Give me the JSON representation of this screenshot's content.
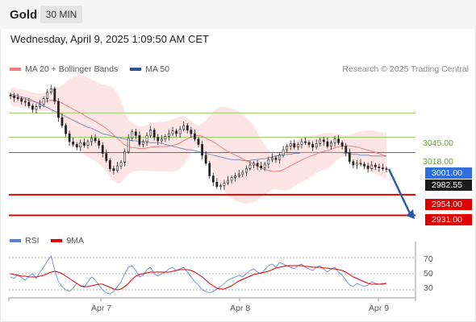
{
  "header": {
    "instrument": "Gold",
    "timeframe": "30 MIN"
  },
  "timestamp": "Wednesday, April 9, 2025 1:09:50 AM CET",
  "credit": "Research © 2025 Trading Central",
  "legend_main": [
    {
      "label": "MA 20 + Bollinger Bands",
      "color": "#f08080"
    },
    {
      "label": "MA 50",
      "color": "#2f4f8f"
    }
  ],
  "legend_rsi": [
    {
      "label": "RSI",
      "color": "#5b7fd6"
    },
    {
      "label": "9MA",
      "color": "#e00000"
    }
  ],
  "chart_data": {
    "type": "candlestick",
    "ylim": [
      2918,
      3083
    ],
    "x_ticks": [
      "Apr 7",
      "Apr 8",
      "Apr 9"
    ],
    "levels": [
      {
        "value": 3045.0,
        "label": "3045.00",
        "kind": "resistance",
        "color": "#9acd6a"
      },
      {
        "value": 3018.0,
        "label": "3018.00",
        "kind": "resistance",
        "color": "#9acd6a"
      },
      {
        "value": 3001.0,
        "label": "3001.00",
        "kind": "pivot",
        "color": "#2f6fe0"
      },
      {
        "value": 2954.0,
        "label": "2954.00",
        "kind": "support",
        "color": "#e00000"
      },
      {
        "value": 2931.0,
        "label": "2931.00",
        "kind": "support",
        "color": "#e00000"
      }
    ],
    "last_price": {
      "value": 2982.55,
      "label": "2982.55"
    },
    "close": [
      3064,
      3062,
      3061,
      3058,
      3057,
      3053,
      3049,
      3052,
      3055,
      3061,
      3068,
      3072,
      3058,
      3040,
      3031,
      3022,
      3013,
      3010,
      3007,
      3012,
      3009,
      3013,
      3017,
      3014,
      3009,
      3000,
      2992,
      2983,
      2981,
      2986,
      2990,
      3002,
      3017,
      3024,
      3020,
      3010,
      3013,
      3020,
      3026,
      3018,
      3014,
      3016,
      3019,
      3022,
      3025,
      3022,
      3027,
      3031,
      3026,
      3022,
      3016,
      3010,
      2998,
      2989,
      2975,
      2968,
      2963,
      2964,
      2967,
      2970,
      2973,
      2975,
      2977,
      2979,
      2983,
      2987,
      2989,
      2986,
      2984,
      2988,
      2993,
      2995,
      2993,
      2998,
      3004,
      3008,
      3011,
      3007,
      3010,
      3013,
      3012,
      3010,
      3007,
      3011,
      3015,
      3013,
      3008,
      3012,
      3016,
      3012,
      3008,
      3001,
      2991,
      2987,
      2989,
      2988,
      2986,
      2983,
      2987,
      2985,
      2984,
      2983,
      2982.55
    ],
    "ma50": [
      3066,
      3065,
      3064,
      3063,
      3062,
      3061,
      3059,
      3057,
      3055,
      3053,
      3051,
      3049,
      3047,
      3045,
      3043,
      3041,
      3039,
      3037,
      3035,
      3033,
      3031,
      3029,
      3028,
      3026,
      3024,
      3022,
      3021,
      3020,
      3019,
      3018,
      3017,
      3016,
      3015,
      3014,
      3014,
      3013,
      3013,
      3013,
      3012,
      3012,
      3012,
      3011,
      3010,
      3009,
      3008,
      3007,
      3006,
      3005,
      3004,
      3004,
      3003,
      3002,
      3001,
      3000,
      2999,
      2998,
      2997,
      2996,
      2995,
      2994,
      2993,
      2993,
      2993,
      2992,
      2992,
      2992,
      2993,
      2993,
      2994,
      2994,
      2995,
      2996,
      2997,
      2998,
      2998,
      2999,
      2999,
      3000,
      3000,
      3001,
      3001,
      3001,
      3001,
      3001,
      3001,
      3001,
      3001,
      3001,
      3001,
      3001,
      3001,
      3000,
      3000,
      2999,
      2999,
      2998,
      2998,
      2998,
      2997,
      2997,
      2997,
      2997,
      2997
    ],
    "rsi": [
      46,
      44,
      49,
      45,
      42,
      47,
      50,
      44,
      52,
      58,
      66,
      72,
      55,
      40,
      34,
      30,
      28,
      32,
      38,
      35,
      33,
      40,
      46,
      42,
      36,
      30,
      26,
      25,
      28,
      34,
      40,
      50,
      58,
      60,
      54,
      46,
      48,
      55,
      58,
      50,
      47,
      50,
      52,
      56,
      58,
      54,
      56,
      58,
      52,
      46,
      40,
      36,
      30,
      28,
      26,
      28,
      31,
      34,
      38,
      42,
      44,
      46,
      48,
      46,
      50,
      54,
      56,
      52,
      50,
      55,
      60,
      62,
      58,
      64,
      62,
      60,
      58,
      56,
      60,
      62,
      58,
      56,
      54,
      58,
      60,
      56,
      52,
      56,
      58,
      52,
      48,
      42,
      36,
      34,
      38,
      36,
      34,
      36,
      40,
      38,
      37,
      38,
      38
    ],
    "rsi_ma": [
      50,
      49,
      48,
      47,
      47,
      46,
      46,
      46,
      47,
      48,
      50,
      52,
      53,
      52,
      50,
      47,
      44,
      41,
      38,
      35,
      34,
      34,
      35,
      36,
      37,
      37,
      35,
      33,
      31,
      30,
      31,
      34,
      38,
      43,
      47,
      49,
      50,
      51,
      52,
      52,
      52,
      52,
      52,
      52,
      53,
      54,
      55,
      55,
      55,
      54,
      52,
      49,
      46,
      42,
      38,
      35,
      32,
      31,
      31,
      33,
      35,
      38,
      41,
      43,
      45,
      47,
      49,
      50,
      51,
      52,
      53,
      55,
      57,
      58,
      59,
      60,
      60,
      60,
      60,
      60,
      59,
      59,
      58,
      58,
      58,
      57,
      57,
      56,
      56,
      55,
      54,
      52,
      49,
      46,
      44,
      42,
      40,
      38,
      37,
      37,
      37,
      37,
      38
    ],
    "rsi_ylim": [
      22,
      78
    ],
    "rsi_ticks": [
      70,
      50,
      30
    ]
  }
}
